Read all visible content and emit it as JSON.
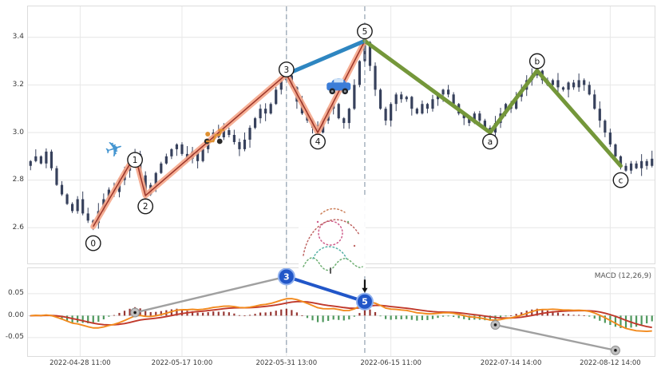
{
  "chart_data": {
    "type": "candlestick",
    "title": "",
    "x_ticks": [
      {
        "bar": 9.5,
        "label": "2022-04-28 11:00"
      },
      {
        "bar": 29,
        "label": "2022-05-17 10:00"
      },
      {
        "bar": 49,
        "label": "2022-05-31 13:00"
      },
      {
        "bar": 69,
        "label": "2022-06-15 11:00"
      },
      {
        "bar": 92,
        "label": "2022-07-14 14:00"
      },
      {
        "bar": 111,
        "label": "2022-08-12 14:00"
      }
    ],
    "price_panel": {
      "ylim": [
        2.45,
        3.53
      ],
      "y_ticks": [
        "3.4",
        "3.2",
        "3.0",
        "2.8",
        "2.6"
      ],
      "y_tick_values": [
        3.4,
        3.2,
        3.0,
        2.8,
        2.6
      ],
      "dashed_vlines_bars": [
        49,
        64
      ],
      "closes": [
        2.88,
        2.9,
        2.87,
        2.92,
        2.85,
        2.78,
        2.74,
        2.7,
        2.67,
        2.72,
        2.66,
        2.63,
        2.62,
        2.67,
        2.72,
        2.76,
        2.75,
        2.8,
        2.84,
        2.88,
        2.91,
        2.82,
        2.74,
        2.78,
        2.83,
        2.87,
        2.9,
        2.93,
        2.95,
        2.91,
        2.89,
        2.92,
        2.88,
        2.93,
        2.97,
        3.0,
        2.98,
        3.01,
        2.99,
        2.96,
        2.93,
        2.97,
        3.02,
        3.06,
        3.1,
        3.08,
        3.12,
        3.18,
        3.22,
        3.24,
        3.19,
        3.13,
        3.08,
        3.05,
        3.02,
        3.0,
        3.05,
        3.1,
        3.12,
        3.06,
        3.04,
        3.1,
        3.2,
        3.3,
        3.38,
        3.28,
        3.18,
        3.1,
        3.05,
        3.12,
        3.16,
        3.14,
        3.15,
        3.1,
        3.08,
        3.12,
        3.1,
        3.14,
        3.16,
        3.18,
        3.16,
        3.12,
        3.08,
        3.06,
        3.04,
        3.08,
        3.05,
        3.02,
        3.0,
        3.04,
        3.08,
        3.12,
        3.1,
        3.15,
        3.18,
        3.22,
        3.24,
        3.26,
        3.22,
        3.2,
        3.22,
        3.19,
        3.18,
        3.21,
        3.19,
        3.22,
        3.2,
        3.16,
        3.1,
        3.05,
        3.0,
        2.95,
        2.9,
        2.86,
        2.84,
        2.87,
        2.85,
        2.88,
        2.86,
        2.89
      ],
      "waves": {
        "impulse_points": [
          {
            "label": "0",
            "bar": 12,
            "price": 2.605,
            "circle_price": 2.535
          },
          {
            "label": "1",
            "bar": 20,
            "price": 2.905,
            "circle_price": 2.885
          },
          {
            "label": "2",
            "bar": 22,
            "price": 2.735,
            "circle_price": 2.69
          },
          {
            "label": "3",
            "bar": 49,
            "price": 3.245,
            "circle_price": 3.265
          },
          {
            "label": "4",
            "bar": 55,
            "price": 3.0,
            "circle_price": 2.962
          },
          {
            "label": "5",
            "bar": 64,
            "price": 3.385,
            "circle_price": 3.425
          }
        ],
        "corrective_points": [
          {
            "label": "a",
            "bar": 88,
            "price": 3.0,
            "circle_price": 2.962
          },
          {
            "label": "b",
            "bar": 97,
            "price": 3.26,
            "circle_price": 3.3
          },
          {
            "label": "c",
            "bar": 113,
            "price": 2.86,
            "circle_price": 2.8
          }
        ],
        "blue_from": {
          "bar": 49,
          "price": 3.245
        },
        "blue_to": {
          "bar": 64,
          "price": 3.385
        }
      },
      "icons": [
        {
          "name": "airplane-icon",
          "bar": 16,
          "price": 2.93
        },
        {
          "name": "scooter-icon",
          "bar": 35,
          "price": 2.99
        },
        {
          "name": "car-icon",
          "bar": 59,
          "price": 3.18
        }
      ]
    },
    "macd_panel": {
      "label": "MACD (12,26,9)",
      "params": [
        12,
        26,
        9
      ],
      "ylim": [
        -0.092,
        0.108
      ],
      "y_ticks": [
        "0.05",
        "0.00",
        "-0.05"
      ],
      "y_tick_values": [
        0.05,
        0.0,
        -0.05
      ],
      "markers": {
        "gray_dots": [
          {
            "bar": 20,
            "value": 0.007
          },
          {
            "bar": 89,
            "value": -0.021
          },
          {
            "bar": 112,
            "value": -0.079
          }
        ],
        "gray_lines": [
          [
            {
              "bar": 20,
              "value": 0.007
            },
            {
              "bar": 49,
              "value": 0.089
            }
          ],
          [
            {
              "bar": 89,
              "value": -0.021
            },
            {
              "bar": 112,
              "value": -0.079
            }
          ]
        ],
        "blue_line": [
          {
            "bar": 49,
            "value": 0.089
          },
          {
            "bar": 64,
            "value": 0.032
          }
        ],
        "blue_circles": [
          {
            "label": "3",
            "bar": 49,
            "value": 0.089
          },
          {
            "label": "5",
            "bar": 64,
            "value": 0.032
          }
        ],
        "arrow": {
          "bar": 64,
          "from": 0.082,
          "to": 0.052
        }
      }
    },
    "colors": {
      "candle": "#37415c",
      "impulse_band": "#f5a689",
      "impulse_core": "#9c3428",
      "blue_line": "#2e86c1",
      "green_line": "#74973a",
      "hist_pos": "#8e2723",
      "hist_neg": "#3f8f4f",
      "dif_line": "#f28a1e",
      "dea_line": "#c0392b",
      "gray_line": "#a0a0a0",
      "blue_marker": "#2156c8",
      "dashed": "#90a0b0"
    }
  }
}
